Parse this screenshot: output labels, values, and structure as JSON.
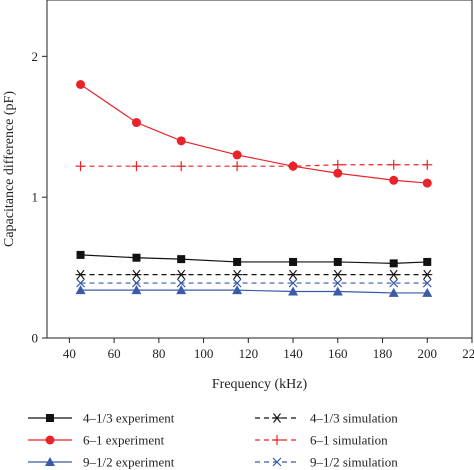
{
  "chart_data": {
    "type": "line",
    "title": "",
    "xlabel": "Frequency (kHz)",
    "ylabel": "Capacitance difference (pF)",
    "xlim": [
      30,
      220
    ],
    "ylim": [
      0,
      2.4
    ],
    "xticks": [
      "40",
      "60",
      "80",
      "100",
      "120",
      "140",
      "160",
      "180",
      "200",
      "220"
    ],
    "yticks": [
      "0",
      "1",
      "2"
    ],
    "grid": false,
    "legend_placement": "bottom",
    "series": [
      {
        "name": "4–1/3 experiment",
        "color": "#111111",
        "line_style": "solid",
        "marker": "square",
        "x": [
          45,
          70,
          90,
          115,
          140,
          160,
          185,
          200
        ],
        "y": [
          0.59,
          0.57,
          0.56,
          0.54,
          0.54,
          0.54,
          0.53,
          0.54
        ]
      },
      {
        "name": "6–1 experiment",
        "color": "#e8242a",
        "line_style": "solid",
        "marker": "circle",
        "x": [
          45,
          70,
          90,
          115,
          140,
          160,
          185,
          200
        ],
        "y": [
          1.8,
          1.53,
          1.4,
          1.3,
          1.22,
          1.17,
          1.12,
          1.1
        ]
      },
      {
        "name": "9–1/2 experiment",
        "color": "#3a5ba8",
        "line_style": "solid",
        "marker": "triangle",
        "x": [
          45,
          70,
          90,
          115,
          140,
          160,
          185,
          200
        ],
        "y": [
          0.34,
          0.34,
          0.34,
          0.34,
          0.33,
          0.33,
          0.32,
          0.32
        ]
      },
      {
        "name": "4–1/3 simulation",
        "color": "#111111",
        "line_style": "dashed",
        "marker": "asterisk",
        "x": [
          45,
          70,
          90,
          115,
          140,
          160,
          185,
          200
        ],
        "y": [
          0.45,
          0.45,
          0.45,
          0.45,
          0.45,
          0.45,
          0.45,
          0.45
        ]
      },
      {
        "name": "6–1 simulation",
        "color": "#e8242a",
        "line_style": "dashed",
        "marker": "plus",
        "x": [
          45,
          70,
          90,
          115,
          140,
          160,
          185,
          200
        ],
        "y": [
          1.22,
          1.22,
          1.22,
          1.22,
          1.22,
          1.23,
          1.23,
          1.23
        ]
      },
      {
        "name": "9–1/2 simulation",
        "color": "#3a5ba8",
        "line_style": "dashed",
        "marker": "x",
        "x": [
          45,
          70,
          90,
          115,
          140,
          160,
          185,
          200
        ],
        "y": [
          0.39,
          0.39,
          0.39,
          0.39,
          0.39,
          0.39,
          0.39,
          0.39
        ]
      }
    ]
  }
}
